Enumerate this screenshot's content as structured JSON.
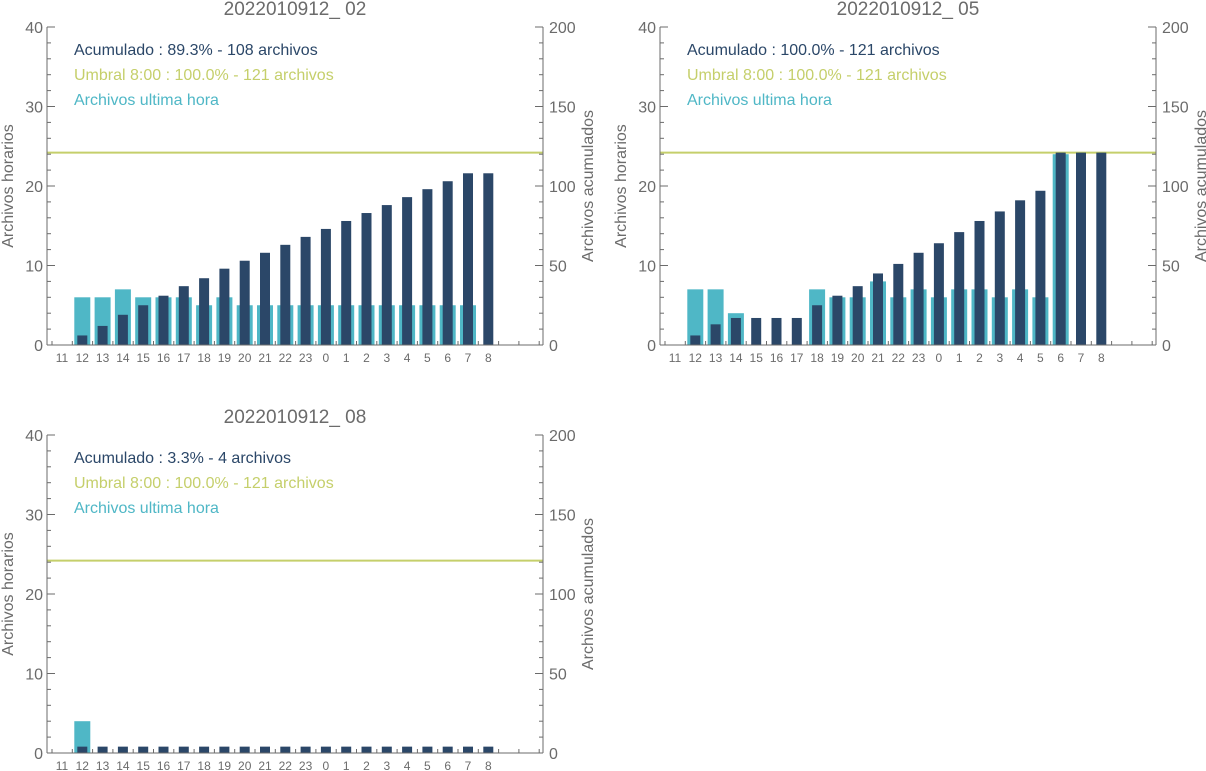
{
  "colors": {
    "accumulated": "#2b4768",
    "hourly": "#4fb7c6",
    "threshold": "#c5cf6b",
    "axis": "#6b6b6b"
  },
  "chart_data": [
    {
      "type": "bar",
      "title": "2022010912_ 02",
      "ylabel": "Archivos horarios",
      "y2label": "Archivos acumulados",
      "ylim": [
        0,
        40
      ],
      "y2lim": [
        0,
        200
      ],
      "yticks": [
        "0",
        "10",
        "20",
        "30",
        "40"
      ],
      "y2ticks": [
        "0",
        "50",
        "100",
        "150",
        "200"
      ],
      "categories": [
        "11",
        "12",
        "13",
        "14",
        "15",
        "16",
        "17",
        "18",
        "19",
        "20",
        "21",
        "22",
        "23",
        "0",
        "1",
        "2",
        "3",
        "4",
        "5",
        "6",
        "7",
        "8"
      ],
      "legend": [
        "Acumulado : 89.3% - 108 archivos",
        "Umbral 8:00 : 100.0% - 121 archivos",
        "Archivos ultima hora"
      ],
      "threshold": 121,
      "series": [
        {
          "name": "Archivos ultima hora",
          "axis": "left",
          "values": [
            0,
            6,
            6,
            7,
            6,
            6,
            6,
            5,
            6,
            5,
            5,
            5,
            5,
            5,
            5,
            5,
            5,
            5,
            5,
            5,
            5,
            0
          ]
        },
        {
          "name": "Acumulado",
          "axis": "right",
          "values": [
            0,
            6,
            12,
            19,
            25,
            31,
            37,
            42,
            48,
            53,
            58,
            63,
            68,
            73,
            78,
            83,
            88,
            93,
            98,
            103,
            108,
            108
          ]
        }
      ]
    },
    {
      "type": "bar",
      "title": "2022010912_ 05",
      "ylabel": "Archivos horarios",
      "y2label": "Archivos acumulados",
      "ylim": [
        0,
        40
      ],
      "y2lim": [
        0,
        200
      ],
      "yticks": [
        "0",
        "10",
        "20",
        "30",
        "40"
      ],
      "y2ticks": [
        "0",
        "50",
        "100",
        "150",
        "200"
      ],
      "categories": [
        "11",
        "12",
        "13",
        "14",
        "15",
        "16",
        "17",
        "18",
        "19",
        "20",
        "21",
        "22",
        "23",
        "0",
        "1",
        "2",
        "3",
        "4",
        "5",
        "6",
        "7",
        "8"
      ],
      "legend": [
        "Acumulado : 100.0% - 121 archivos",
        "Umbral 8:00 : 100.0% - 121 archivos",
        "Archivos ultima hora"
      ],
      "threshold": 121,
      "series": [
        {
          "name": "Archivos ultima hora",
          "axis": "left",
          "values": [
            0,
            7,
            7,
            4,
            0,
            0,
            0,
            7,
            6,
            6,
            8,
            6,
            7,
            6,
            7,
            7,
            6,
            7,
            6,
            24,
            0,
            0
          ]
        },
        {
          "name": "Acumulado",
          "axis": "right",
          "values": [
            0,
            6,
            13,
            17,
            17,
            17,
            17,
            25,
            31,
            37,
            45,
            51,
            58,
            64,
            71,
            78,
            84,
            91,
            97,
            121,
            121,
            121
          ]
        }
      ]
    },
    {
      "type": "bar",
      "title": "2022010912_ 08",
      "ylabel": "Archivos horarios",
      "y2label": "Archivos acumulados",
      "ylim": [
        0,
        40
      ],
      "y2lim": [
        0,
        200
      ],
      "yticks": [
        "0",
        "10",
        "20",
        "30",
        "40"
      ],
      "y2ticks": [
        "0",
        "50",
        "100",
        "150",
        "200"
      ],
      "categories": [
        "11",
        "12",
        "13",
        "14",
        "15",
        "16",
        "17",
        "18",
        "19",
        "20",
        "21",
        "22",
        "23",
        "0",
        "1",
        "2",
        "3",
        "4",
        "5",
        "6",
        "7",
        "8"
      ],
      "legend": [
        "Acumulado : 3.3% - 4 archivos",
        "Umbral 8:00 : 100.0% - 121 archivos",
        "Archivos ultima hora"
      ],
      "threshold": 121,
      "series": [
        {
          "name": "Archivos ultima hora",
          "axis": "left",
          "values": [
            0,
            4,
            0,
            0,
            0,
            0,
            0,
            0,
            0,
            0,
            0,
            0,
            0,
            0,
            0,
            0,
            0,
            0,
            0,
            0,
            0,
            0
          ]
        },
        {
          "name": "Acumulado",
          "axis": "right",
          "values": [
            0,
            4,
            4,
            4,
            4,
            4,
            4,
            4,
            4,
            4,
            4,
            4,
            4,
            4,
            4,
            4,
            4,
            4,
            4,
            4,
            4,
            4
          ]
        }
      ]
    }
  ]
}
